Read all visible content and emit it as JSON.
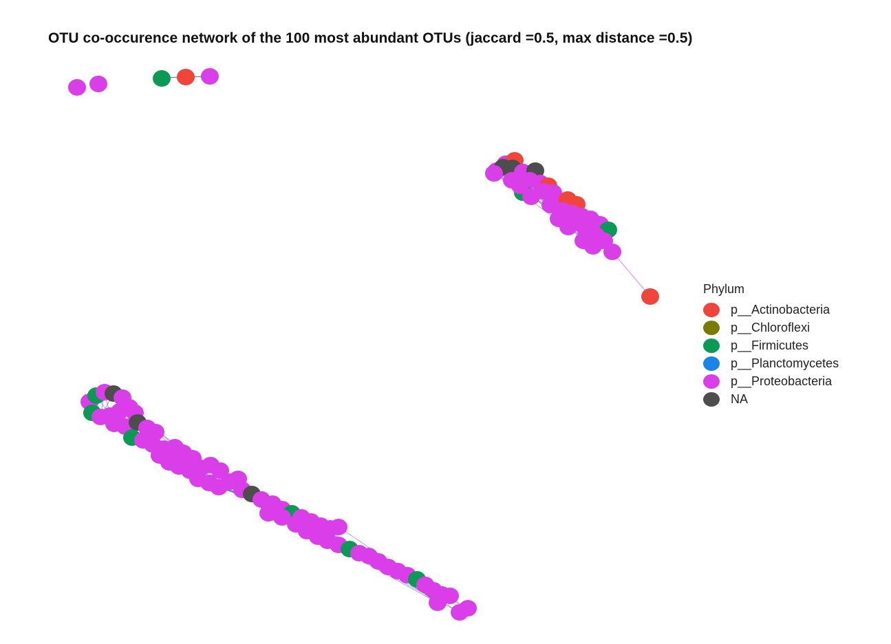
{
  "title": "OTU co-occurence network of the 100 most abundant OTUs (jaccard =0.5, max distance =0.5)",
  "legend": {
    "title": "Phylum",
    "items": [
      {
        "label": "p__Actinobacteria",
        "color": "#f0453a"
      },
      {
        "label": "p__Chloroflexi",
        "color": "#7a7a00"
      },
      {
        "label": "p__Firmicutes",
        "color": "#0a9a55"
      },
      {
        "label": "p__Planctomycetes",
        "color": "#1a84e8"
      },
      {
        "label": "p__Proteobacteria",
        "color": "#d93ee8"
      },
      {
        "label": "NA",
        "color": "#4d4d4d"
      }
    ]
  },
  "colors": {
    "edge_main": "#5a5ad0",
    "edge_light": "#e08ae8"
  }
}
